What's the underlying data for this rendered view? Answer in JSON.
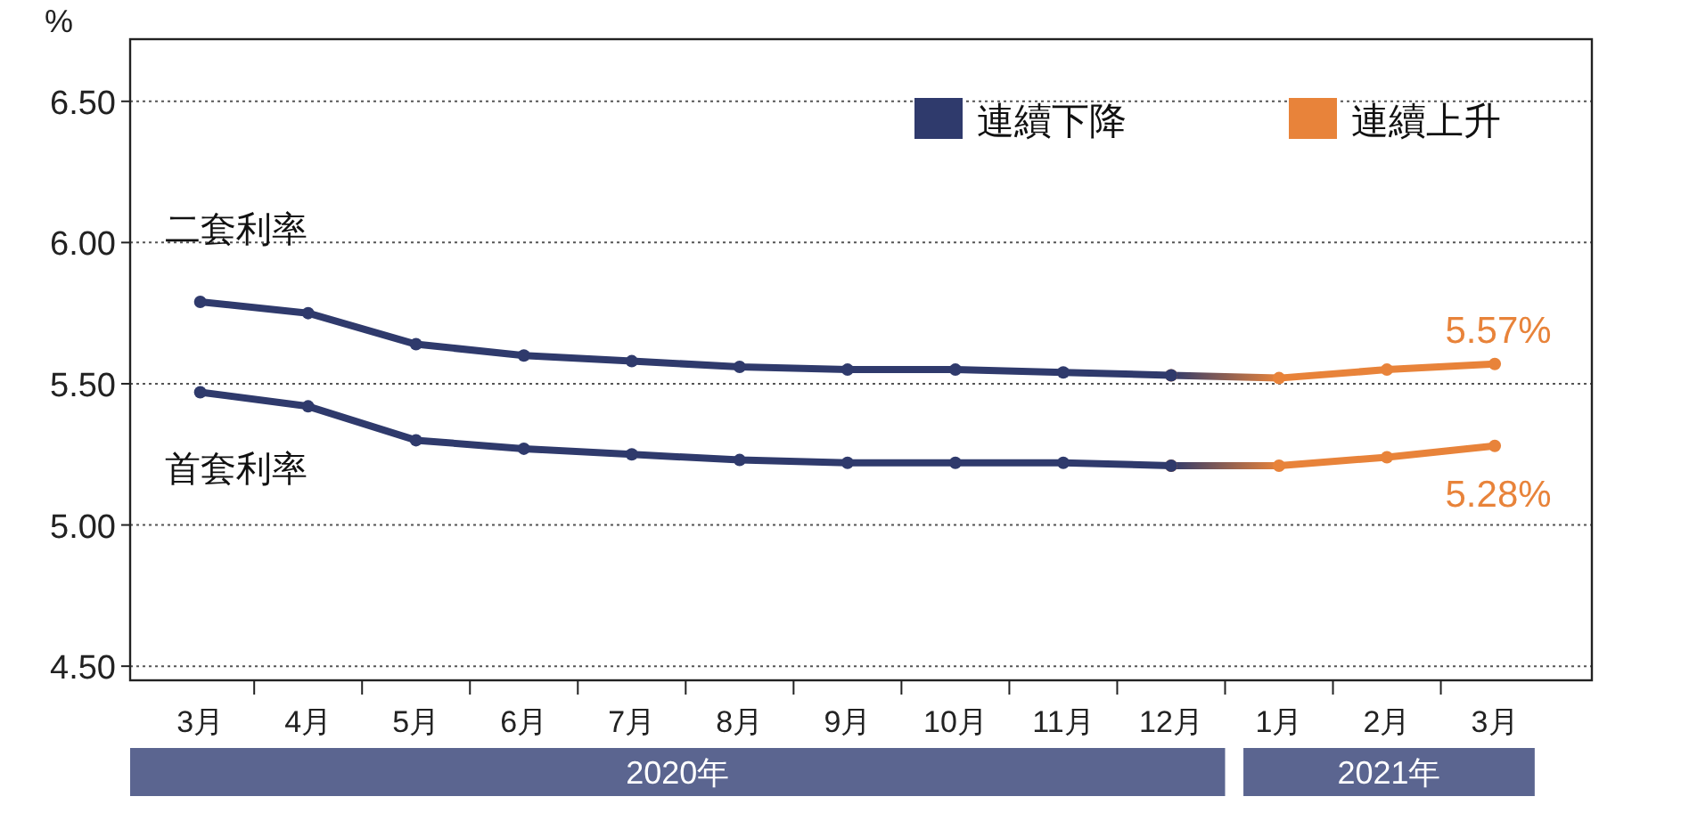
{
  "chart_data": {
    "type": "line",
    "ylabel": "%",
    "categories": [
      "3月",
      "4月",
      "5月",
      "6月",
      "7月",
      "8月",
      "9月",
      "10月",
      "11月",
      "12月",
      "1月",
      "2月",
      "3月"
    ],
    "series": [
      {
        "name": "連續下降",
        "color": "#2f3a6c",
        "values": [
          5.79,
          5.75,
          5.64,
          5.6,
          5.58,
          5.56,
          5.55,
          5.55,
          5.54,
          5.53,
          null,
          null,
          null
        ]
      },
      {
        "name": "連續上升",
        "color": "#e8833a",
        "values": [
          null,
          null,
          null,
          null,
          null,
          null,
          null,
          null,
          null,
          5.53,
          5.52,
          5.55,
          5.57
        ],
        "value_labels": [
          null,
          null,
          null,
          null,
          null,
          null,
          null,
          null,
          null,
          null,
          null,
          null,
          "5.57%"
        ]
      },
      {
        "color": "#2f3a6c",
        "values": [
          5.47,
          5.42,
          5.3,
          5.27,
          5.25,
          5.23,
          5.22,
          5.22,
          5.22,
          5.21,
          null,
          null,
          null
        ]
      },
      {
        "color": "#e8833a",
        "values": [
          null,
          null,
          null,
          null,
          null,
          null,
          null,
          null,
          null,
          5.21,
          5.21,
          5.24,
          5.28
        ],
        "value_labels": [
          null,
          null,
          null,
          null,
          null,
          null,
          null,
          null,
          null,
          null,
          null,
          null,
          "5.28%"
        ]
      }
    ],
    "ylim": [
      4.45,
      6.72
    ],
    "yticks": [
      {
        "value": 4.5,
        "label": "4.50"
      },
      {
        "value": 5.0,
        "label": "5.00"
      },
      {
        "value": 5.5,
        "label": "5.50"
      },
      {
        "value": 6.0,
        "label": "6.00"
      },
      {
        "value": 6.5,
        "label": "6.50"
      }
    ],
    "grid": "y",
    "legend": "top right",
    "marker": "circle",
    "annotations": [
      "二套利率",
      "首套利率",
      "2020年",
      "2021年"
    ]
  }
}
